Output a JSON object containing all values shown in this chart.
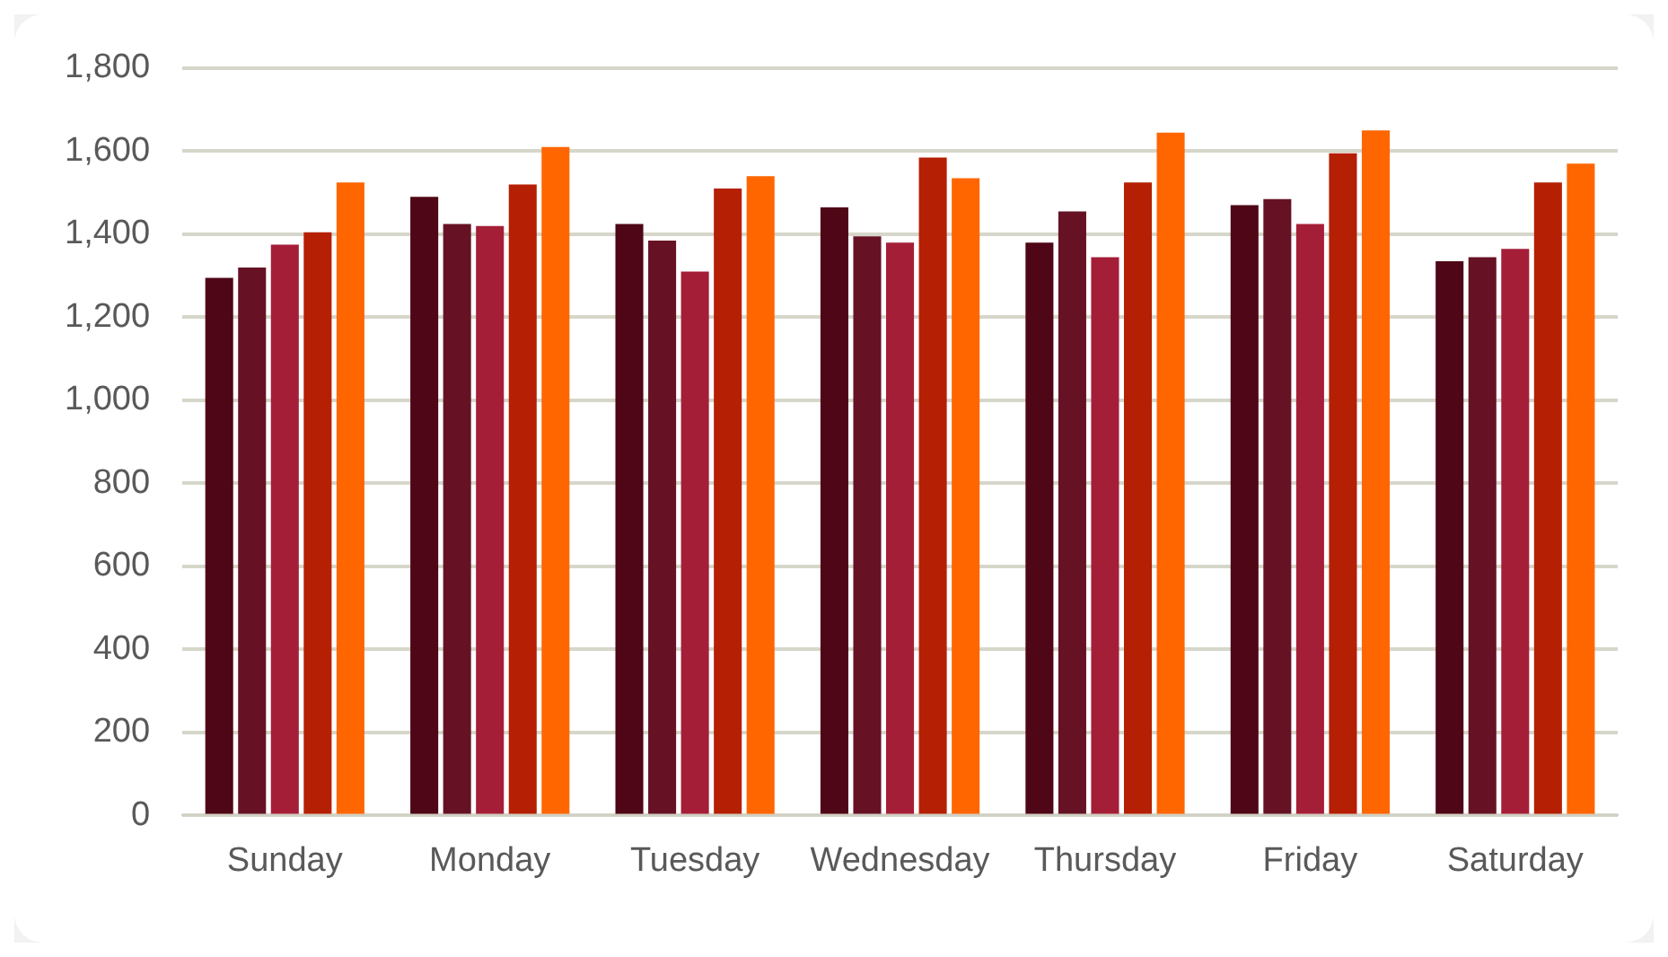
{
  "chart_data": {
    "type": "bar",
    "categories": [
      "Sunday",
      "Monday",
      "Tuesday",
      "Wednesday",
      "Thursday",
      "Friday",
      "Saturday"
    ],
    "series": [
      {
        "color": "#4f0616",
        "values": [
          1295,
          1490,
          1425,
          1465,
          1380,
          1470,
          1335
        ]
      },
      {
        "color": "#661224",
        "values": [
          1320,
          1425,
          1385,
          1395,
          1455,
          1485,
          1345
        ]
      },
      {
        "color": "#a51e37",
        "values": [
          1375,
          1420,
          1310,
          1380,
          1345,
          1425,
          1365
        ]
      },
      {
        "color": "#b51f04",
        "values": [
          1405,
          1520,
          1510,
          1585,
          1525,
          1595,
          1525
        ]
      },
      {
        "color": "#ff6600",
        "values": [
          1525,
          1610,
          1540,
          1535,
          1645,
          1650,
          1570
        ]
      }
    ],
    "ylim": [
      0,
      1800
    ],
    "yticks": [
      0,
      200,
      400,
      600,
      800,
      {
        "value": 1000,
        "label": "1,000"
      },
      {
        "value": 1200,
        "label": "1,200"
      },
      {
        "value": 1400,
        "label": "1,400"
      },
      {
        "value": 1600,
        "label": "1,600"
      },
      {
        "value": 1800,
        "label": "1,800"
      }
    ],
    "grid": "y",
    "legend": false
  }
}
